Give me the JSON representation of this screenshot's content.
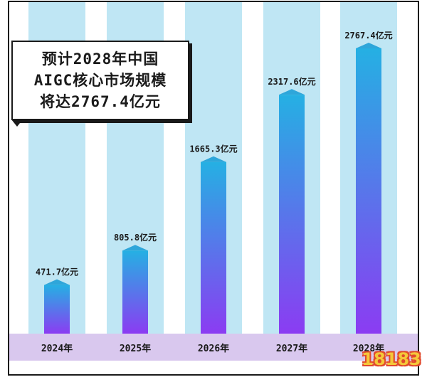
{
  "title_lines": [
    "预计2028年中国",
    "AIGC核心市场规模",
    "将达2767.4亿元"
  ],
  "colors": {
    "column_bg": "#bfe6f4",
    "axis_band": "#d9c8ee",
    "bar_top": "#25b0e3",
    "bar_bottom": "#8b3cf2",
    "cap": "#2ea6da",
    "frame": "#1a1a1a"
  },
  "logo_text": "18183",
  "chart_data": {
    "type": "bar",
    "categories": [
      "2024年",
      "2025年",
      "2026年",
      "2027年",
      "2028年"
    ],
    "values": [
      471.7,
      805.8,
      1665.3,
      2317.6,
      2767.4
    ],
    "value_labels": [
      "471.7亿元",
      "805.8亿元",
      "1665.3亿元",
      "2317.6亿元",
      "2767.4亿元"
    ],
    "title": "预计2028年中国AIGC核心市场规模将达2767.4亿元",
    "ylim": [
      0,
      2767.4
    ],
    "grid": false,
    "legend": "none"
  }
}
